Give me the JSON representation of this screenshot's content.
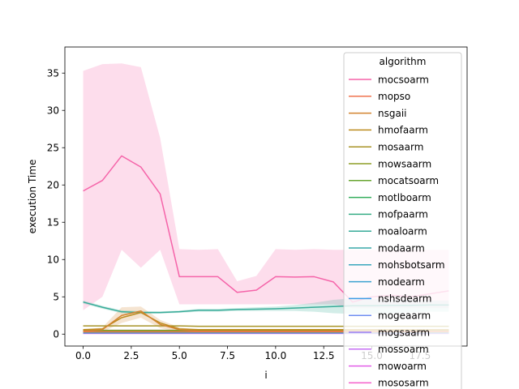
{
  "chart_data": {
    "type": "line",
    "xlabel": "i",
    "ylabel": "execution Time",
    "xlim": [
      -0.95,
      19.95
    ],
    "ylim": [
      -1.6,
      38.5
    ],
    "xticks": [
      0.0,
      2.5,
      5.0,
      7.5,
      10.0,
      12.5,
      15.0,
      17.5
    ],
    "xtick_labels": [
      "0.0",
      "2.5",
      "5.0",
      "7.5",
      "10.0",
      "12.5",
      "15.0",
      "17.5"
    ],
    "yticks": [
      0,
      5,
      10,
      15,
      20,
      25,
      30,
      35
    ],
    "ytick_labels": [
      "0",
      "5",
      "10",
      "15",
      "20",
      "25",
      "30",
      "35"
    ],
    "grid": false,
    "legend": {
      "title": "algorithm",
      "placement": "top-right"
    },
    "x": [
      0,
      1,
      2,
      3,
      4,
      5,
      6,
      7,
      8,
      9,
      10,
      11,
      12,
      13,
      14,
      15,
      16,
      17,
      18,
      19
    ],
    "series": [
      {
        "name": "mocsoarm",
        "color": "#f564a9",
        "values": [
          19.2,
          20.6,
          23.9,
          22.4,
          18.8,
          7.7,
          7.7,
          7.7,
          5.6,
          5.9,
          7.7,
          7.65,
          7.7,
          7.0,
          4.3,
          5.0,
          5.2,
          5.0,
          5.4,
          5.8
        ],
        "ci_low": [
          3.2,
          5.0,
          11.3,
          8.9,
          11.3,
          4.0,
          4.0,
          4.0,
          4.0,
          4.0,
          4.0,
          4.0,
          4.0,
          4.0,
          3.5,
          3.5,
          3.5,
          3.5,
          3.5,
          3.5
        ],
        "ci_high": [
          35.3,
          36.2,
          36.3,
          35.8,
          26.3,
          11.4,
          11.3,
          11.4,
          7.1,
          7.8,
          11.4,
          11.3,
          11.4,
          11.3,
          11.3,
          11.3,
          11.3,
          11.3,
          11.3,
          11.3
        ]
      },
      {
        "name": "mopso",
        "color": "#f0734f",
        "values": [
          0.3,
          0.3,
          0.3,
          0.3,
          0.3,
          0.3,
          0.3,
          0.3,
          0.3,
          0.3,
          0.3,
          0.3,
          0.3,
          0.3,
          0.3,
          0.3,
          0.3,
          0.3,
          0.3,
          0.3
        ]
      },
      {
        "name": "nsgaii",
        "color": "#d2832e",
        "values": [
          0.4,
          0.6,
          2.5,
          3.1,
          1.3,
          0.6,
          0.4,
          0.4,
          0.4,
          0.4,
          0.4,
          0.4,
          0.4,
          0.4,
          0.4,
          0.4,
          0.4,
          0.4,
          0.4,
          0.4
        ],
        "ci_low": [
          0.2,
          0.3,
          1.5,
          2.2,
          0.8,
          0.3,
          0.2,
          0.2,
          0.2,
          0.2,
          0.2,
          0.2,
          0.2,
          0.2,
          0.2,
          0.2,
          0.2,
          0.2,
          0.2,
          0.2
        ],
        "ci_high": [
          0.6,
          0.9,
          3.6,
          3.7,
          1.9,
          0.9,
          0.6,
          0.6,
          0.6,
          0.6,
          0.6,
          0.6,
          0.6,
          0.6,
          0.6,
          0.6,
          0.6,
          0.6,
          0.6,
          0.6
        ]
      },
      {
        "name": "hmofaarm",
        "color": "#bc8c1e",
        "values": [
          0.6,
          0.7,
          2.2,
          2.9,
          1.5,
          0.7,
          0.6,
          0.6,
          0.6,
          0.6,
          0.6,
          0.6,
          0.6,
          0.6,
          0.6,
          0.6,
          0.6,
          0.6,
          0.6,
          0.6
        ]
      },
      {
        "name": "mosaarm",
        "color": "#a89427",
        "values": [
          1.1,
          1.1,
          1.1,
          1.1,
          1.1,
          1.1,
          1.05,
          1.05,
          1.05,
          1.05,
          1.05,
          1.05,
          1.05,
          1.05,
          1.05,
          1.05,
          1.05,
          1.05,
          1.05,
          1.05
        ]
      },
      {
        "name": "mowsaarm",
        "color": "#8e9d26",
        "values": [
          0.5,
          0.5,
          0.5,
          0.5,
          0.5,
          0.5,
          0.5,
          0.5,
          0.5,
          0.5,
          0.5,
          0.5,
          0.5,
          0.5,
          0.5,
          0.5,
          0.5,
          0.5,
          0.5,
          0.5
        ]
      },
      {
        "name": "mocatsoarm",
        "color": "#68a631",
        "values": [
          0.45,
          0.45,
          0.45,
          0.45,
          0.45,
          0.45,
          0.45,
          0.45,
          0.45,
          0.45,
          0.45,
          0.45,
          0.45,
          0.45,
          0.45,
          0.45,
          0.45,
          0.45,
          0.45,
          0.45
        ]
      },
      {
        "name": "motlboarm",
        "color": "#34ae5c",
        "values": [
          0.4,
          0.4,
          0.4,
          0.4,
          0.4,
          0.4,
          0.4,
          0.4,
          0.4,
          0.4,
          0.4,
          0.4,
          0.4,
          0.4,
          0.4,
          0.4,
          0.4,
          0.4,
          0.4,
          0.4
        ]
      },
      {
        "name": "mofpaarm",
        "color": "#36ad84",
        "values": [
          0.35,
          0.35,
          0.35,
          0.35,
          0.35,
          0.35,
          0.35,
          0.35,
          0.35,
          0.35,
          0.35,
          0.35,
          0.35,
          0.35,
          0.35,
          0.35,
          0.35,
          0.35,
          0.35,
          0.35
        ]
      },
      {
        "name": "moaloarm",
        "color": "#37ab98",
        "values": [
          4.3,
          3.6,
          3.0,
          2.9,
          2.9,
          3.0,
          3.2,
          3.2,
          3.3,
          3.35,
          3.4,
          3.5,
          3.6,
          3.7,
          3.8,
          3.8,
          3.85,
          3.85,
          3.9,
          3.9
        ],
        "ci_low": [
          4.1,
          3.4,
          2.8,
          2.7,
          2.75,
          2.85,
          3.0,
          3.0,
          3.1,
          3.1,
          3.1,
          3.1,
          3.0,
          2.8,
          2.7,
          2.7,
          2.8,
          2.9,
          3.0,
          3.0
        ],
        "ci_high": [
          4.5,
          3.8,
          3.2,
          3.1,
          3.05,
          3.15,
          3.4,
          3.4,
          3.5,
          3.6,
          3.7,
          3.9,
          4.2,
          4.6,
          4.8,
          4.7,
          4.6,
          4.6,
          4.5,
          4.5
        ]
      },
      {
        "name": "modaarm",
        "color": "#38a9aa",
        "values": [
          0.3,
          0.3,
          0.3,
          0.3,
          0.3,
          0.3,
          0.3,
          0.3,
          0.3,
          0.3,
          0.3,
          0.3,
          0.3,
          0.3,
          0.3,
          0.3,
          0.3,
          0.3,
          0.3,
          0.3
        ]
      },
      {
        "name": "mohsbotsarm",
        "color": "#39a7bc",
        "values": [
          0.25,
          0.25,
          0.25,
          0.25,
          0.25,
          0.25,
          0.25,
          0.25,
          0.25,
          0.25,
          0.25,
          0.25,
          0.25,
          0.25,
          0.25,
          0.25,
          0.25,
          0.25,
          0.25,
          0.25
        ]
      },
      {
        "name": "modearm",
        "color": "#3ba3d0",
        "values": [
          0.2,
          0.2,
          0.2,
          0.2,
          0.2,
          0.2,
          0.2,
          0.2,
          0.2,
          0.2,
          0.2,
          0.2,
          0.2,
          0.2,
          0.2,
          0.2,
          0.2,
          0.2,
          0.2,
          0.2
        ]
      },
      {
        "name": "nshsdearm",
        "color": "#3e9de6",
        "values": [
          0.2,
          0.2,
          0.2,
          0.2,
          0.2,
          0.2,
          0.2,
          0.2,
          0.2,
          0.2,
          0.2,
          0.2,
          0.2,
          0.2,
          0.2,
          0.2,
          0.2,
          0.2,
          0.2,
          0.2
        ]
      },
      {
        "name": "mogeaarm",
        "color": "#6e8ef1",
        "values": [
          0.15,
          0.15,
          0.15,
          0.15,
          0.15,
          0.15,
          0.15,
          0.15,
          0.15,
          0.15,
          0.15,
          0.15,
          0.15,
          0.15,
          0.15,
          0.15,
          0.15,
          0.15,
          0.15,
          0.15
        ]
      },
      {
        "name": "mogsaarm",
        "color": "#9c7ff4",
        "values": [
          0.5,
          0.5,
          0.5,
          0.5,
          0.5,
          0.5,
          0.5,
          0.5,
          0.5,
          0.5,
          0.5,
          0.5,
          0.5,
          0.5,
          0.5,
          0.5,
          0.5,
          0.5,
          0.5,
          0.5
        ]
      },
      {
        "name": "mossoarm",
        "color": "#c56ff3",
        "values": [
          0.3,
          0.3,
          0.3,
          0.3,
          0.3,
          0.3,
          0.3,
          0.3,
          0.3,
          0.3,
          0.3,
          0.3,
          0.3,
          0.3,
          0.3,
          0.3,
          0.3,
          0.3,
          0.3,
          0.3
        ]
      },
      {
        "name": "mowoarm",
        "color": "#e35fe8",
        "values": [
          0.1,
          0.1,
          0.1,
          0.1,
          0.1,
          0.1,
          0.1,
          0.1,
          0.1,
          0.1,
          0.1,
          0.1,
          0.1,
          0.1,
          0.1,
          0.1,
          0.1,
          0.1,
          0.1,
          0.1
        ]
      },
      {
        "name": "mososarm",
        "color": "#f55fcb",
        "values": [
          0.1,
          0.1,
          0.1,
          0.1,
          0.1,
          0.1,
          0.1,
          0.1,
          0.1,
          0.1,
          0.1,
          0.1,
          0.1,
          0.1,
          0.1,
          0.1,
          0.1,
          0.1,
          0.1,
          0.1
        ]
      }
    ]
  }
}
